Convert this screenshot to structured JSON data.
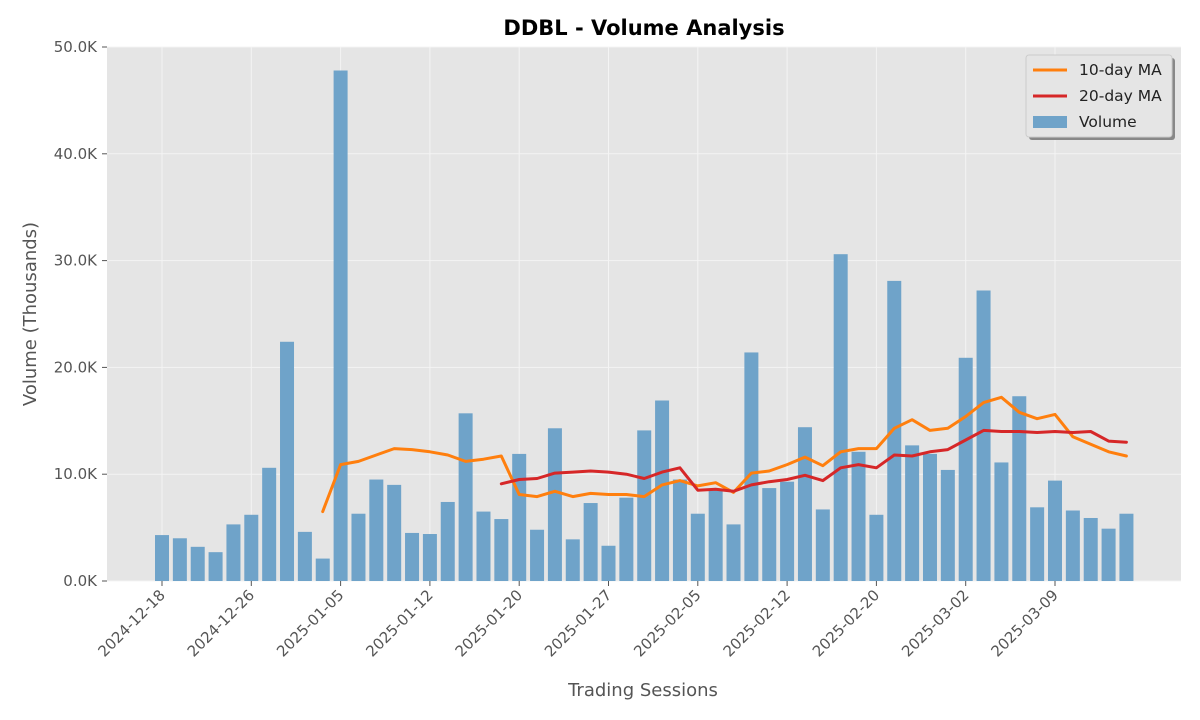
{
  "chart_data": {
    "type": "bar",
    "title": "DDBL - Volume Analysis",
    "xlabel": "Trading Sessions",
    "ylabel": "Volume (Thousands)",
    "ylim": [
      0,
      50
    ],
    "yticks": [
      "0.0K",
      "10.0K",
      "20.0K",
      "30.0K",
      "40.0K",
      "50.0K"
    ],
    "xtick_labels": [
      "2024-12-18",
      "2024-12-26",
      "2025-01-05",
      "2025-01-12",
      "2025-01-20",
      "2025-01-27",
      "2025-02-05",
      "2025-02-12",
      "2025-02-20",
      "2025-03-02",
      "2025-03-09"
    ],
    "xtick_positions": [
      0,
      5,
      10,
      15,
      20,
      25,
      30,
      35,
      40,
      45,
      50
    ],
    "grid": true,
    "legend_position": "top-right",
    "colors": {
      "volume": "#6fa3c9",
      "ma10": "#ff7f0e",
      "ma20": "#d62728",
      "plot_bg": "#e5e5e5"
    },
    "series": [
      {
        "name": "Volume",
        "kind": "bar",
        "values": [
          4.3,
          4.0,
          3.2,
          2.7,
          5.3,
          6.2,
          10.6,
          22.4,
          4.6,
          2.1,
          47.8,
          6.3,
          9.5,
          9.0,
          4.5,
          4.4,
          7.4,
          15.7,
          6.5,
          5.8,
          11.9,
          4.8,
          14.3,
          3.9,
          7.3,
          3.3,
          7.8,
          14.1,
          16.9,
          9.5,
          6.3,
          8.6,
          5.3,
          21.4,
          8.7,
          9.3,
          14.4,
          6.7,
          30.6,
          12.1,
          6.2,
          28.1,
          12.7,
          11.9,
          10.4,
          20.9,
          27.2,
          11.1,
          17.3,
          6.9,
          9.4,
          6.6,
          5.9,
          4.9,
          6.3
        ]
      },
      {
        "name": "10-day MA",
        "kind": "line",
        "values": [
          null,
          null,
          null,
          null,
          null,
          null,
          null,
          null,
          null,
          6.5,
          10.9,
          11.2,
          11.8,
          12.4,
          12.3,
          12.1,
          11.8,
          11.2,
          11.4,
          11.7,
          8.1,
          7.9,
          8.4,
          7.9,
          8.2,
          8.1,
          8.1,
          7.9,
          9.0,
          9.4,
          8.9,
          9.2,
          8.3,
          10.1,
          10.3,
          10.9,
          11.6,
          10.8,
          12.1,
          12.4,
          12.4,
          14.3,
          15.1,
          14.1,
          14.3,
          15.4,
          16.7,
          17.2,
          15.8,
          15.2,
          15.6,
          13.5,
          12.8,
          12.1,
          11.7
        ]
      },
      {
        "name": "20-day MA",
        "kind": "line",
        "values": [
          null,
          null,
          null,
          null,
          null,
          null,
          null,
          null,
          null,
          null,
          null,
          null,
          null,
          null,
          null,
          null,
          null,
          null,
          null,
          9.1,
          9.5,
          9.6,
          10.1,
          10.2,
          10.3,
          10.2,
          10.0,
          9.6,
          10.2,
          10.6,
          8.5,
          8.6,
          8.4,
          9.0,
          9.3,
          9.5,
          9.9,
          9.4,
          10.6,
          10.9,
          10.6,
          11.8,
          11.7,
          12.1,
          12.3,
          13.2,
          14.1,
          14.0,
          14.0,
          13.9,
          14.0,
          13.9,
          14.0,
          13.1,
          13.0
        ]
      }
    ]
  }
}
